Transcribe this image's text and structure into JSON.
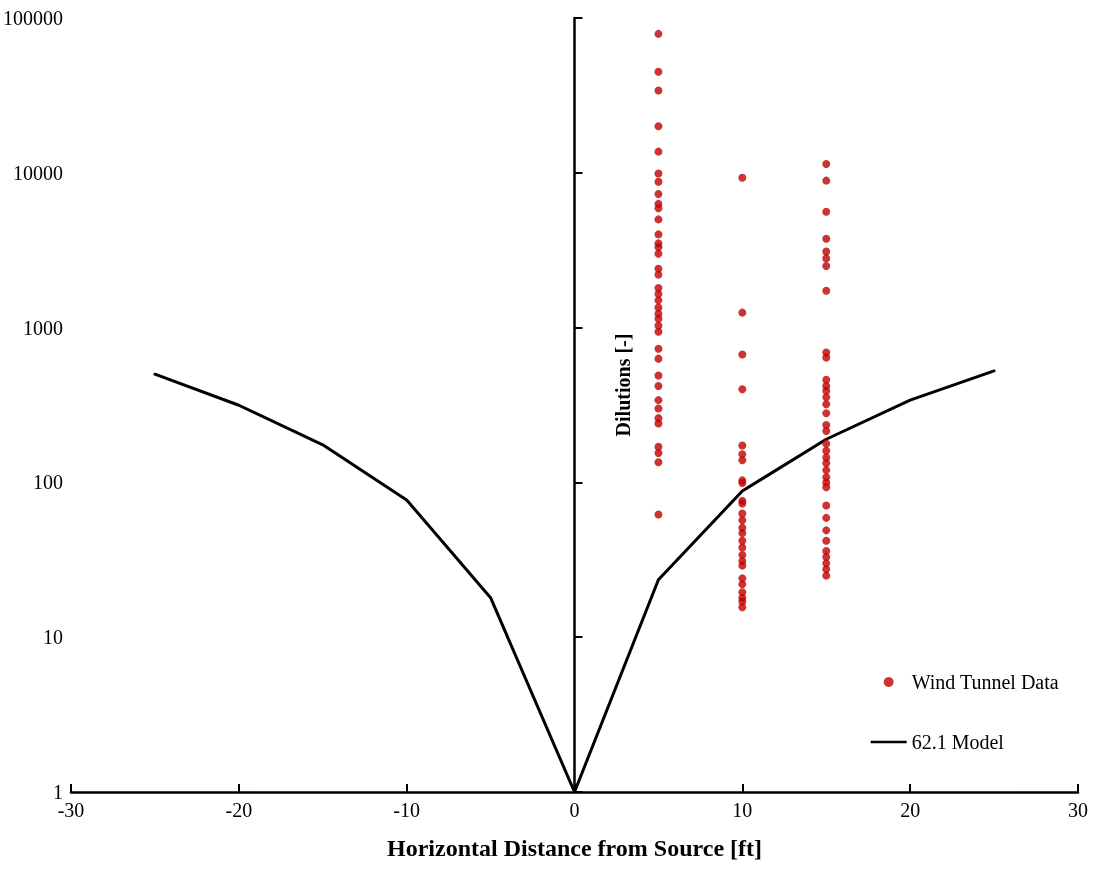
{
  "chart_data": {
    "type": "scatter",
    "xlabel": "Horizontal Distance from Source [ft]",
    "ylabel": "Dilutions [-]",
    "xlim": [
      -30,
      30
    ],
    "xticks": [
      -30,
      -20,
      -10,
      0,
      10,
      20,
      30
    ],
    "ylim": [
      1,
      100000
    ],
    "yticks": [
      1,
      10,
      100,
      1000,
      10000,
      100000
    ],
    "log": "y",
    "legend": "bottom right",
    "series": [
      {
        "name": "Wind Tunnel Data",
        "type": "scatter",
        "color": "#c00000",
        "marker": "circle",
        "x": [
          5,
          5,
          5,
          5,
          5,
          5,
          5,
          5,
          5,
          5,
          5,
          5,
          5,
          5,
          5,
          5,
          5,
          5,
          5,
          5,
          5,
          5,
          5,
          5,
          5,
          5,
          5,
          5,
          5,
          5,
          5,
          5,
          5,
          5,
          5,
          5,
          5,
          10,
          10,
          10,
          10,
          10,
          10,
          10,
          10,
          10,
          10,
          10,
          10,
          10,
          10,
          10,
          10,
          10,
          10,
          10,
          10,
          10,
          10,
          10,
          10,
          10,
          10,
          15,
          15,
          15,
          15,
          15,
          15,
          15,
          15,
          15,
          15,
          15,
          15,
          15,
          15,
          15,
          15,
          15,
          15,
          15,
          15,
          15,
          15,
          15,
          15,
          15,
          15,
          15,
          15,
          15,
          15,
          15,
          15,
          15,
          15,
          15
        ],
        "values": [
          79000,
          45000,
          34000,
          20000,
          13700,
          9900,
          8750,
          7300,
          6300,
          5900,
          5000,
          4000,
          3500,
          3300,
          3000,
          2400,
          2200,
          1800,
          1650,
          1500,
          1350,
          1230,
          1140,
          1030,
          940,
          730,
          630,
          490,
          420,
          340,
          300,
          260,
          240,
          170,
          155,
          135,
          62,
          9300,
          1250,
          670,
          400,
          173,
          152,
          139,
          103,
          99,
          76,
          73,
          63,
          57,
          51,
          47,
          42,
          38,
          34,
          31,
          29,
          24,
          22,
          19.5,
          18,
          17,
          15.6,
          11400,
          8900,
          5600,
          3750,
          3100,
          2800,
          2500,
          1730,
          690,
          640,
          460,
          420,
          390,
          355,
          320,
          280,
          235,
          215,
          178,
          160,
          145,
          133,
          120,
          108,
          100,
          93,
          71,
          59,
          49,
          42,
          36,
          33,
          30,
          27.5,
          25
        ]
      },
      {
        "name": "62.1 Model",
        "type": "line",
        "color": "#000000",
        "marker": "none",
        "line_style": "solid",
        "x": [
          -25,
          -20,
          -15,
          -10,
          -5,
          0,
          5,
          10,
          15,
          20,
          25
        ],
        "values": [
          500,
          315,
          175,
          77,
          18,
          1,
          23.5,
          88,
          190,
          340,
          525
        ]
      }
    ]
  }
}
